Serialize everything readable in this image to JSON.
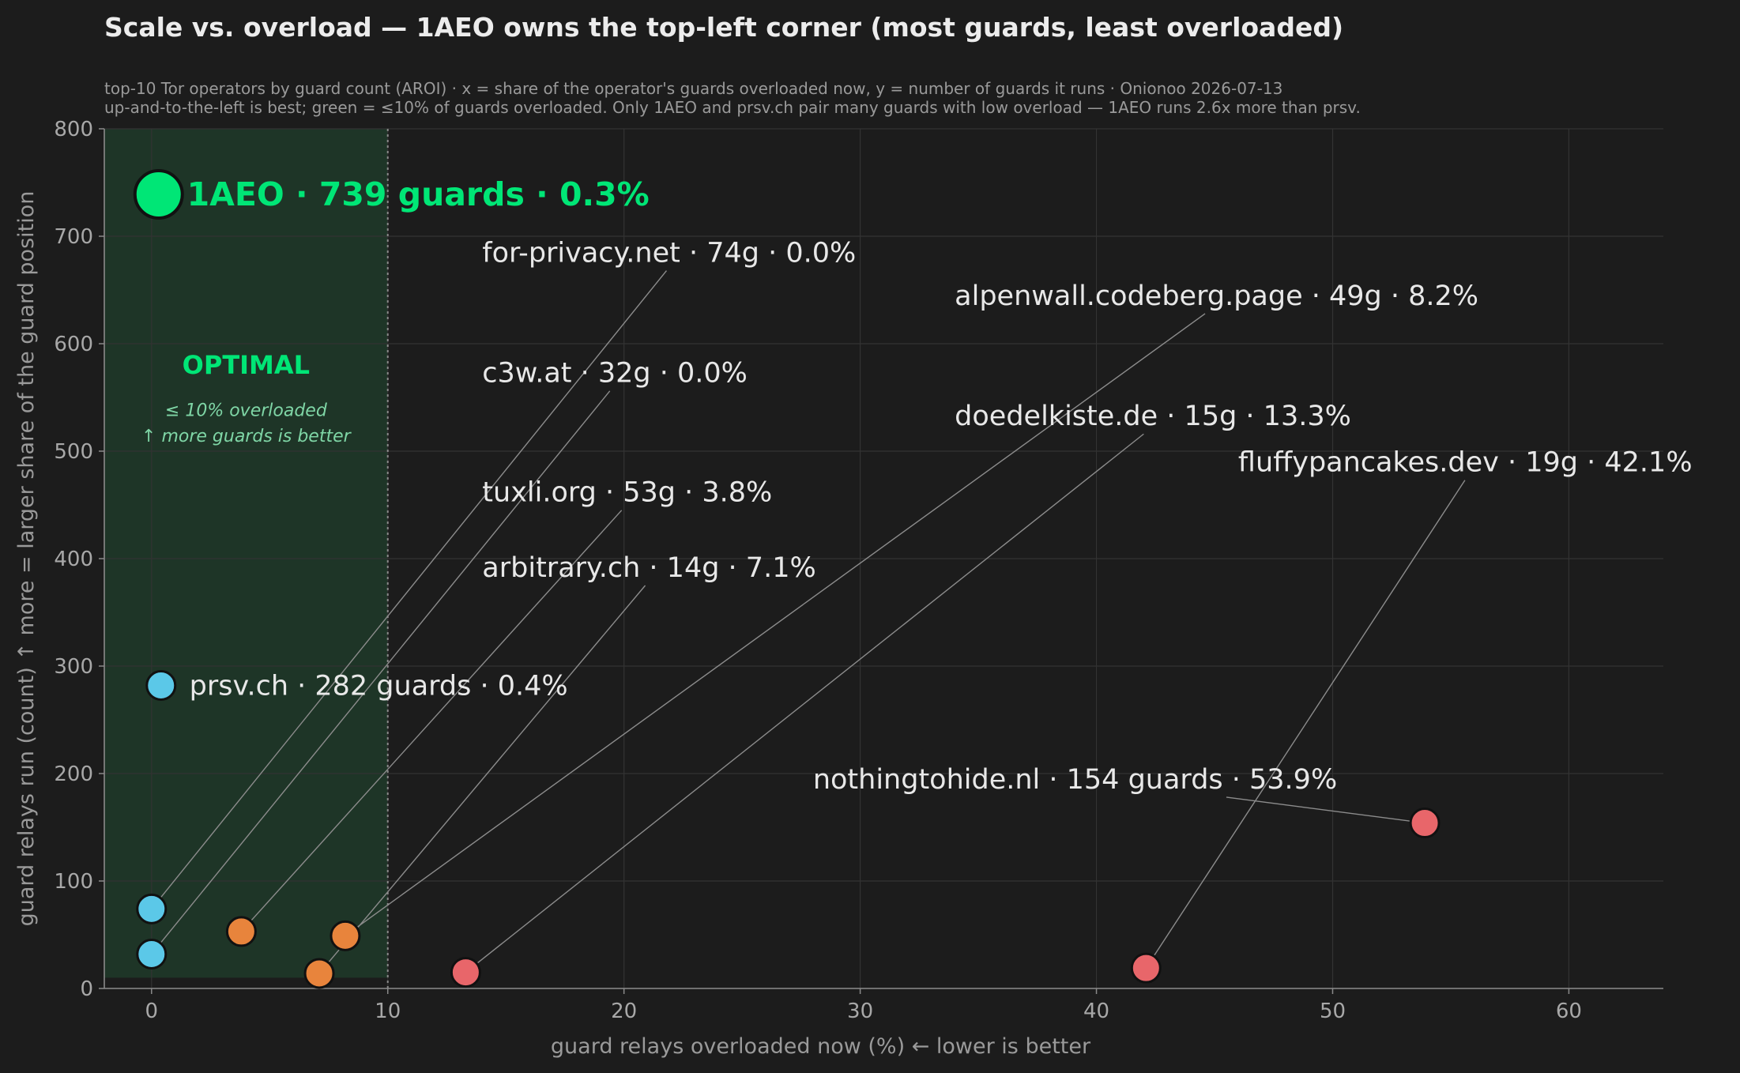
{
  "title": "Scale vs. overload — 1AEO owns the top-left corner (most guards, least overloaded)",
  "subtitle_lines": [
    "top-10 Tor operators by guard count (AROI) · x = share of the operator's guards overloaded now, y = number of guards it runs · Onionoo 2026-07-13",
    "up-and-to-the-left is best; green = ≤10% of guards overloaded. Only 1AEO and prsv.ch pair many guards with low overload — 1AEO runs 2.6x more than prsv."
  ],
  "optimal_zone": {
    "title": "OPTIMAL",
    "notes": [
      "≤ 10% overloaded",
      "↑ more guards is better"
    ],
    "x_max": 10
  },
  "colors": {
    "background": "#1c1c1c",
    "zone": "#1e3527",
    "highlight": "#00e676",
    "blue": "#5bc8e8",
    "orange": "#e8843c",
    "red": "#e8666a",
    "grid": "#333333"
  },
  "chart_data": {
    "type": "scatter",
    "xlabel": "guard relays overloaded now  (%)      ←  lower is better",
    "ylabel": "guard relays run  (count)      ↑  more = larger share of the guard position",
    "xlim": [
      -2,
      64
    ],
    "ylim": [
      0,
      800
    ],
    "xticks": [
      0,
      10,
      20,
      30,
      40,
      50,
      60
    ],
    "yticks": [
      0,
      100,
      200,
      300,
      400,
      500,
      600,
      700,
      800
    ],
    "grid": true,
    "points": [
      {
        "name": "1AEO",
        "x": 0.3,
        "y": 739,
        "color": "highlight",
        "size": "large",
        "label": "1AEO  ·  739 guards · 0.3%",
        "label_x": 1.5,
        "label_y": 739,
        "highlight": true,
        "leader": false
      },
      {
        "name": "prsv.ch",
        "x": 0.4,
        "y": 282,
        "color": "blue",
        "label": "prsv.ch  ·  282 guards · 0.4%",
        "label_x": 1.6,
        "label_y": 282,
        "leader": false
      },
      {
        "name": "for-privacy.net",
        "x": 0.0,
        "y": 74,
        "color": "blue",
        "label": "for-privacy.net  ·  74g · 0.0%",
        "label_x": 14.0,
        "label_y": 685,
        "leader_end_x": 21.8,
        "leader_end_y": 668,
        "leader": true
      },
      {
        "name": "c3w.at",
        "x": 0.0,
        "y": 32,
        "color": "blue",
        "label": "c3w.at  ·  32g · 0.0%",
        "label_x": 14.0,
        "label_y": 573,
        "leader_end_x": 19.4,
        "leader_end_y": 556,
        "leader": true
      },
      {
        "name": "tuxli.org",
        "x": 3.8,
        "y": 53,
        "color": "orange",
        "label": "tuxli.org  ·  53g · 3.8%",
        "label_x": 14.0,
        "label_y": 462,
        "leader_end_x": 19.9,
        "leader_end_y": 445,
        "leader": true
      },
      {
        "name": "arbitrary.ch",
        "x": 7.1,
        "y": 14,
        "color": "orange",
        "label": "arbitrary.ch  ·  14g · 7.1%",
        "label_x": 14.0,
        "label_y": 392,
        "leader_end_x": 20.9,
        "leader_end_y": 375,
        "leader": true
      },
      {
        "name": "alpenwall.codeberg.page",
        "x": 8.2,
        "y": 49,
        "color": "orange",
        "label": "alpenwall.codeberg.page  ·  49g · 8.2%",
        "label_x": 34.0,
        "label_y": 645,
        "leader_end_x": 44.6,
        "leader_end_y": 628,
        "leader": true
      },
      {
        "name": "doedelkiste.de",
        "x": 13.3,
        "y": 15,
        "color": "red",
        "label": "doedelkiste.de  ·  15g · 13.3%",
        "label_x": 34.0,
        "label_y": 533,
        "leader_end_x": 42.0,
        "leader_end_y": 516,
        "leader": true
      },
      {
        "name": "fluffypancakes.dev",
        "x": 42.1,
        "y": 19,
        "color": "red",
        "label": "fluffypancakes.dev  ·  19g · 42.1%",
        "label_x": 46.0,
        "label_y": 490,
        "leader_end_x": 55.6,
        "leader_end_y": 473,
        "leader": true
      },
      {
        "name": "nothingtohide.nl",
        "x": 53.9,
        "y": 154,
        "color": "red",
        "label": "nothingtohide.nl · 154 guards · 53.9%",
        "label_x": 28.0,
        "label_y": 195,
        "leader_end_x": 45.5,
        "leader_end_y": 178,
        "leader": true
      }
    ]
  }
}
